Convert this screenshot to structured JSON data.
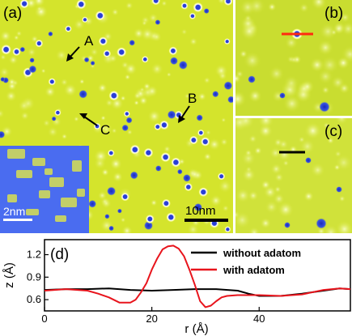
{
  "panels": {
    "a": {
      "label": "(a)",
      "markers": [
        "A",
        "B",
        "C"
      ],
      "scale_bar": "10nm",
      "inset_scale_bar": "2nm"
    },
    "b": {
      "label": "(b)"
    },
    "c": {
      "label": "(c)"
    },
    "d": {
      "label": "(d)"
    }
  },
  "colors": {
    "surface": "#d6e62a",
    "surface_light": "#eef57a",
    "defect_blue": "#2a3fd6",
    "inset_blue": "#4a6cf0",
    "line_without": "#000000",
    "line_with": "#e8141c",
    "panel_b_line": "#ff2a10"
  },
  "chart_data": {
    "type": "line",
    "xlabel": "r (Å)",
    "ylabel": "z (Å)",
    "xlim": [
      0,
      57
    ],
    "ylim": [
      0.45,
      1.4
    ],
    "xticks": [
      0,
      20,
      40
    ],
    "yticks": [
      0.6,
      0.9,
      1.2
    ],
    "xtick_labels": [
      "0",
      "20",
      "40"
    ],
    "ytick_labels": [
      "0.6",
      "0.9",
      "1.2"
    ],
    "legend_position": "top-right",
    "series": [
      {
        "name": "without  adatom",
        "color": "#000000",
        "x": [
          0,
          4,
          8,
          12,
          16,
          20,
          24,
          28,
          32,
          36,
          38,
          40,
          44,
          48,
          52,
          55,
          57
        ],
        "y": [
          0.73,
          0.74,
          0.74,
          0.75,
          0.73,
          0.72,
          0.73,
          0.74,
          0.74,
          0.72,
          0.68,
          0.65,
          0.65,
          0.68,
          0.72,
          0.75,
          0.74
        ]
      },
      {
        "name": "with adatom",
        "color": "#e8141c",
        "x": [
          0,
          4,
          8,
          10,
          12,
          14,
          16,
          17,
          18,
          19,
          20,
          21,
          22,
          23,
          24,
          25,
          26,
          27,
          28,
          29,
          30,
          31,
          32,
          33,
          34,
          36,
          38,
          40,
          44,
          48,
          52,
          55,
          57
        ],
        "y": [
          0.72,
          0.74,
          0.72,
          0.68,
          0.63,
          0.56,
          0.56,
          0.6,
          0.7,
          0.82,
          1.0,
          1.15,
          1.27,
          1.31,
          1.32,
          1.28,
          1.18,
          1.0,
          0.8,
          0.58,
          0.5,
          0.52,
          0.58,
          0.63,
          0.65,
          0.66,
          0.66,
          0.66,
          0.65,
          0.67,
          0.73,
          0.75,
          0.74
        ]
      }
    ]
  }
}
